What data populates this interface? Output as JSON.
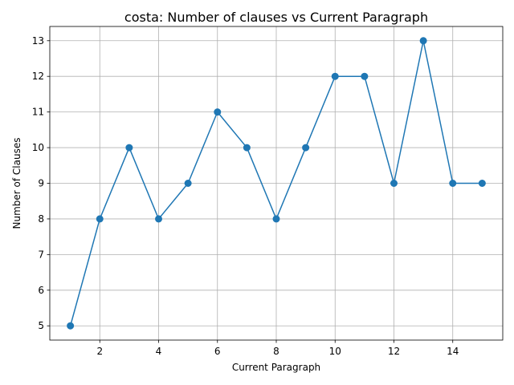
{
  "chart_data": {
    "type": "line",
    "title": "costa: Number of clauses vs Current Paragraph",
    "xlabel": "Current Paragraph",
    "ylabel": "Number of Clauses",
    "x": [
      1,
      2,
      3,
      4,
      5,
      6,
      7,
      8,
      9,
      10,
      11,
      12,
      13,
      14,
      15
    ],
    "series": [
      {
        "values": [
          5,
          8,
          10,
          8,
          9,
          11,
          10,
          8,
          10,
          12,
          12,
          9,
          13,
          9,
          9
        ],
        "color": "#1f77b4",
        "marker": "circle"
      }
    ],
    "xlim": [
      0.3,
      15.7
    ],
    "ylim": [
      4.6,
      13.4
    ],
    "xticks": [
      2,
      4,
      6,
      8,
      10,
      12,
      14
    ],
    "yticks": [
      5,
      6,
      7,
      8,
      9,
      10,
      11,
      12,
      13
    ],
    "grid": true
  }
}
